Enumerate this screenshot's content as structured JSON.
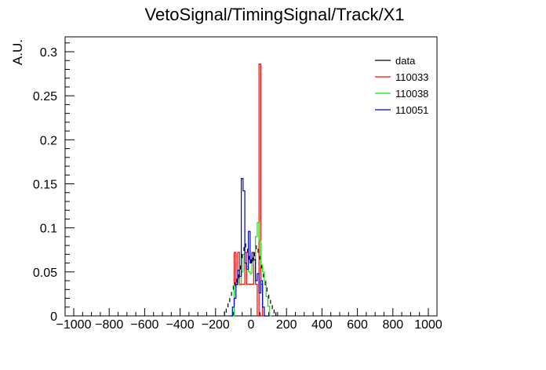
{
  "chart_data": {
    "type": "line",
    "title": "VetoSignal/TimingSignal/Track/X1",
    "xlabel": "",
    "ylabel": "A.U.",
    "xlim": [
      -1000,
      1000
    ],
    "ylim": [
      0,
      0.315
    ],
    "x_ticks": [
      -1000,
      -800,
      -600,
      -400,
      -200,
      0,
      200,
      400,
      600,
      800,
      1000
    ],
    "x_tick_labels": [
      "−1000",
      "−800",
      "−600",
      "−400",
      "−200",
      "0",
      "200",
      "400",
      "600",
      "800",
      "1000"
    ],
    "y_ticks": [
      0,
      0.05,
      0.1,
      0.15,
      0.2,
      0.25,
      0.3
    ],
    "y_tick_labels": [
      "0",
      "0.05",
      "0.1",
      "0.15",
      "0.2",
      "0.25",
      "0.3"
    ],
    "grid": false,
    "legend_position": "top-right",
    "bin_width": 10,
    "series": [
      {
        "name": "data",
        "color": "#000000",
        "style": "points",
        "x": [
          -150,
          -140,
          -130,
          -120,
          -110,
          -100,
          -90,
          -80,
          -70,
          -60,
          -50,
          -40,
          -30,
          -20,
          -10,
          0,
          10,
          20,
          30,
          40,
          50,
          60,
          70,
          80,
          90,
          100,
          110,
          120,
          130,
          140
        ],
        "y": [
          0.003,
          0.006,
          0.012,
          0.018,
          0.025,
          0.032,
          0.036,
          0.04,
          0.045,
          0.055,
          0.068,
          0.076,
          0.08,
          0.074,
          0.066,
          0.062,
          0.064,
          0.07,
          0.078,
          0.074,
          0.066,
          0.056,
          0.046,
          0.037,
          0.03,
          0.022,
          0.016,
          0.01,
          0.005,
          0.002
        ]
      },
      {
        "name": "110033",
        "color": "#ff0000",
        "style": "step",
        "x": [
          -90,
          -80,
          -70,
          -60,
          -50,
          -40,
          -30,
          -20,
          -10,
          0,
          10,
          20,
          30,
          40,
          50,
          60,
          70,
          80
        ],
        "y": [
          0.072,
          0.036,
          0.072,
          0.036,
          0.036,
          0.036,
          0.072,
          0.036,
          0.036,
          0.036,
          0.036,
          0.072,
          0.036,
          0.0,
          0.286,
          0.036,
          0.0,
          0.0
        ]
      },
      {
        "name": "110038",
        "color": "#00ee00",
        "style": "step",
        "x": [
          -110,
          -100,
          -90,
          -80,
          -70,
          -60,
          -50,
          -40,
          -30,
          -20,
          -10,
          0,
          10,
          20,
          30,
          40,
          50,
          60,
          70,
          80,
          90,
          100,
          110
        ],
        "y": [
          0.0,
          0.0,
          0.035,
          0.035,
          0.042,
          0.035,
          0.05,
          0.07,
          0.06,
          0.056,
          0.05,
          0.048,
          0.058,
          0.063,
          0.09,
          0.106,
          0.085,
          0.058,
          0.05,
          0.04,
          0.022,
          0.011,
          0.0
        ]
      },
      {
        "name": "110051",
        "color": "#0000cc",
        "style": "step",
        "x": [
          -110,
          -100,
          -90,
          -80,
          -70,
          -60,
          -50,
          -40,
          -30,
          -20,
          -10,
          0,
          10,
          20,
          30,
          40,
          50,
          60,
          70,
          80,
          90,
          100
        ],
        "y": [
          0.0,
          0.01,
          0.02,
          0.036,
          0.052,
          0.045,
          0.156,
          0.142,
          0.06,
          0.053,
          0.096,
          0.06,
          0.072,
          0.064,
          0.04,
          0.048,
          0.026,
          0.04,
          0.01,
          0.0,
          0.0,
          0.0
        ]
      }
    ]
  }
}
